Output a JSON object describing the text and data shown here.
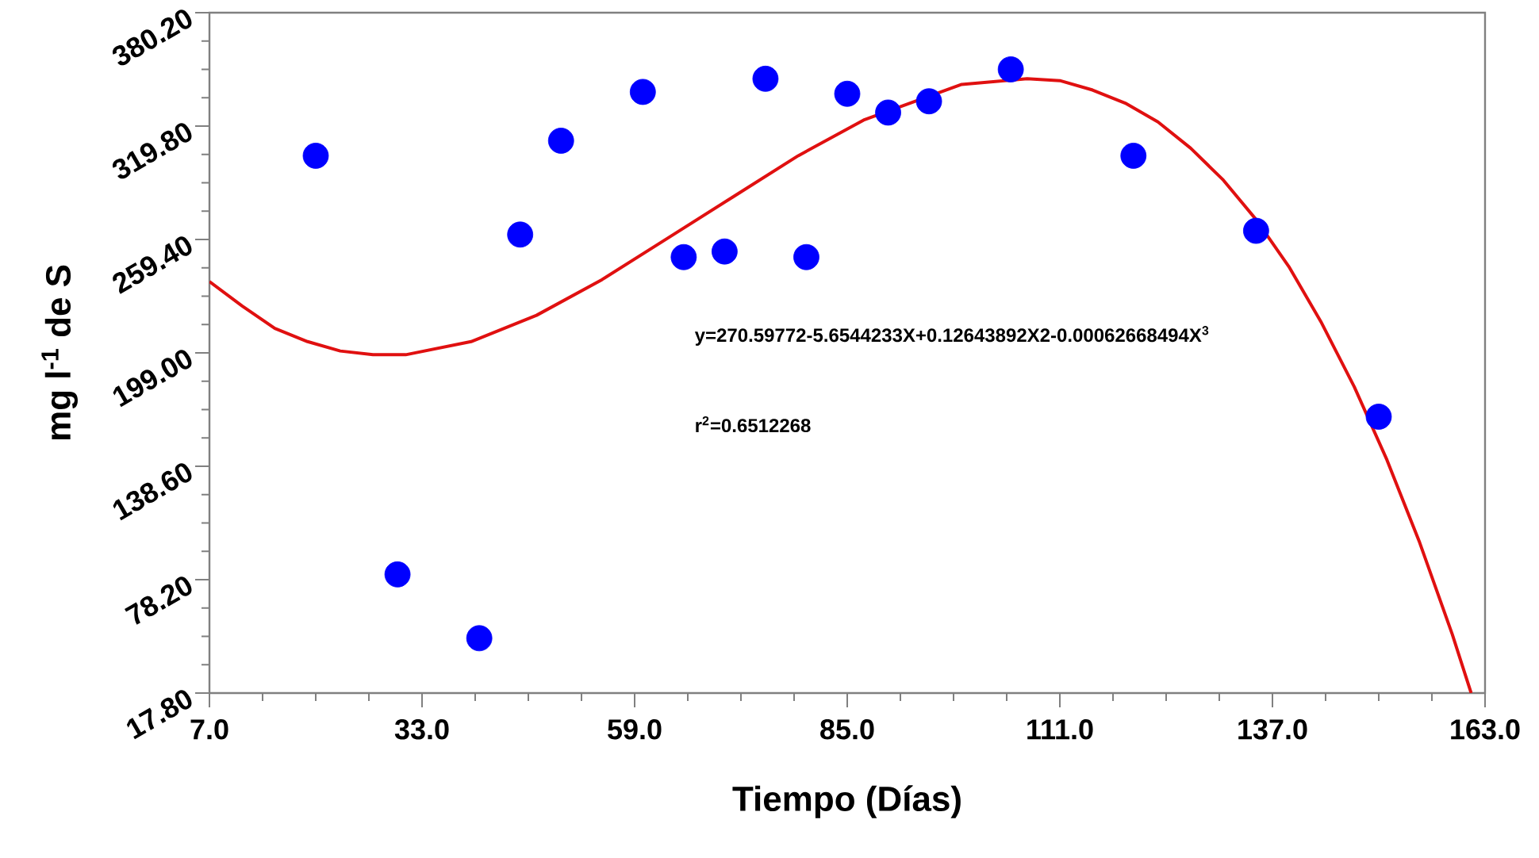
{
  "chart_data": {
    "type": "scatter",
    "xlabel": "Tiempo (Días)",
    "ylabel": "mg l$^{-1}$ de S",
    "xlim": [
      7,
      163
    ],
    "ylim": [
      17.8,
      380.2
    ],
    "xticks": [
      {
        "value": 7,
        "label": "7.0"
      },
      {
        "value": 33,
        "label": "33.0"
      },
      {
        "value": 59,
        "label": "59.0"
      },
      {
        "value": 85,
        "label": "85.0"
      },
      {
        "value": 111,
        "label": "111.0"
      },
      {
        "value": 137,
        "label": "137.0"
      },
      {
        "value": 163,
        "label": "163.0"
      }
    ],
    "yticks": [
      {
        "value": 17.8,
        "label": "17.80"
      },
      {
        "value": 78.2,
        "label": "78.20"
      },
      {
        "value": 138.6,
        "label": "138.60"
      },
      {
        "value": 199,
        "label": "199.00"
      },
      {
        "value": 259.4,
        "label": "259.40"
      },
      {
        "value": 319.8,
        "label": "319.80"
      },
      {
        "value": 380.2,
        "label": "380.20"
      }
    ],
    "grid": false,
    "annotations": [
      "y=270.59772-5.6544233X+0.12643892X2-0.00062668494X$^{3}$",
      "r$^{2}$=0.6512268"
    ],
    "series": [
      {
        "marker": "circle",
        "color": "#0000ff",
        "x": [
          20,
          30,
          40,
          45,
          50,
          60,
          65,
          70,
          75,
          80,
          85,
          90,
          95,
          105,
          120,
          135,
          150
        ],
        "values": [
          304,
          81,
          47,
          262,
          312,
          338,
          250,
          253,
          345,
          250,
          337,
          327,
          333,
          350,
          304,
          264,
          165
        ]
      },
      {
        "type": "line",
        "marker": "none",
        "line_style": "solid",
        "color": "#e01010",
        "x": [
          7,
          11,
          15,
          19,
          23,
          27,
          31,
          39,
          47,
          55,
          63,
          71,
          79,
          87,
          99,
          107,
          111,
          115,
          119,
          123,
          127,
          131,
          135,
          139,
          143,
          147,
          151,
          155,
          159,
          161.3
        ],
        "values": [
          237,
          224,
          212,
          205,
          200,
          198,
          198,
          205,
          219,
          238,
          260,
          282,
          304,
          323,
          342,
          345,
          344,
          339,
          332,
          322,
          308,
          291,
          270,
          245,
          215,
          181,
          142,
          98,
          49,
          17.8
        ]
      }
    ]
  }
}
